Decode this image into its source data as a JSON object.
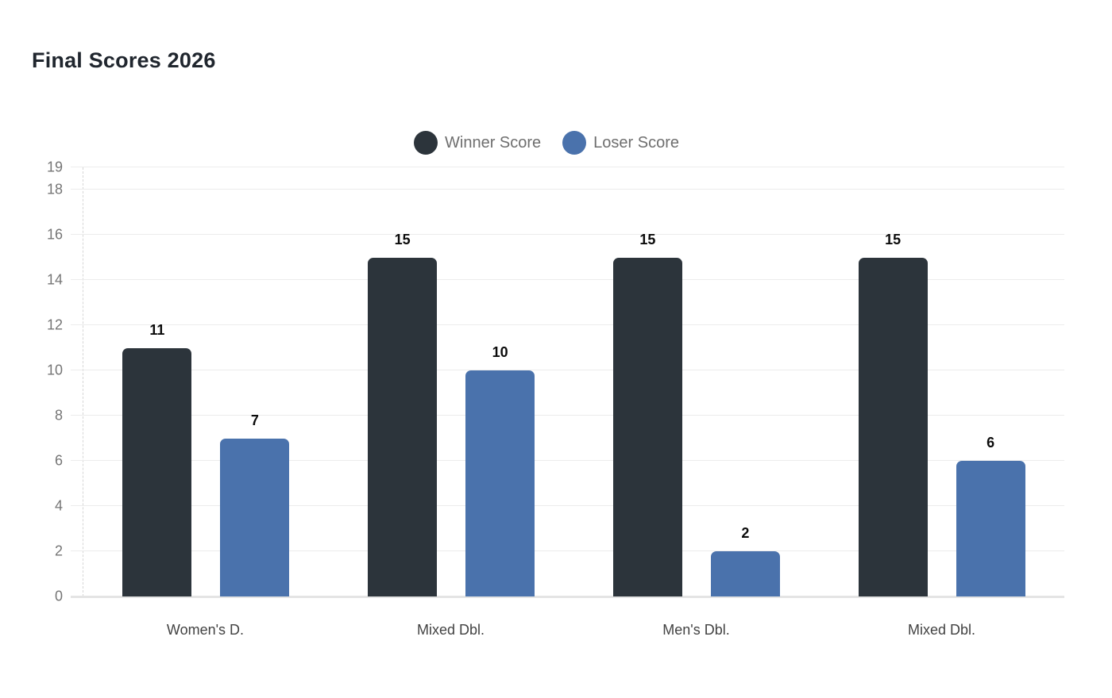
{
  "page": {
    "background": "#ffffff"
  },
  "chart_data": {
    "type": "bar",
    "title": "Final Scores 2026",
    "categories": [
      "Women's D.",
      "Mixed Dbl.",
      "Men's Dbl.",
      "Mixed Dbl."
    ],
    "series": [
      {
        "name": "Winner Score",
        "color": "#2c343b",
        "values": [
          11,
          15,
          15,
          15
        ]
      },
      {
        "name": "Loser Score",
        "color": "#4a72ac",
        "values": [
          7,
          10,
          2,
          6
        ]
      }
    ],
    "ylim": [
      0,
      19
    ],
    "yticks": [
      0,
      2,
      4,
      6,
      8,
      10,
      12,
      14,
      16,
      18,
      19
    ],
    "grid": true,
    "legend_position": "top-center",
    "bar_value_labels": true,
    "styles": {
      "gridline_color": "#ececec",
      "baseline_color": "#e4e4e4",
      "axis_dash_color": "#d6d6d6",
      "y_tick_color": "#757575",
      "x_label_color": "#424242",
      "legend_text_color": "#6e6e6e",
      "value_label_color": "#0b0b0b",
      "title_color": "#20262e"
    }
  }
}
